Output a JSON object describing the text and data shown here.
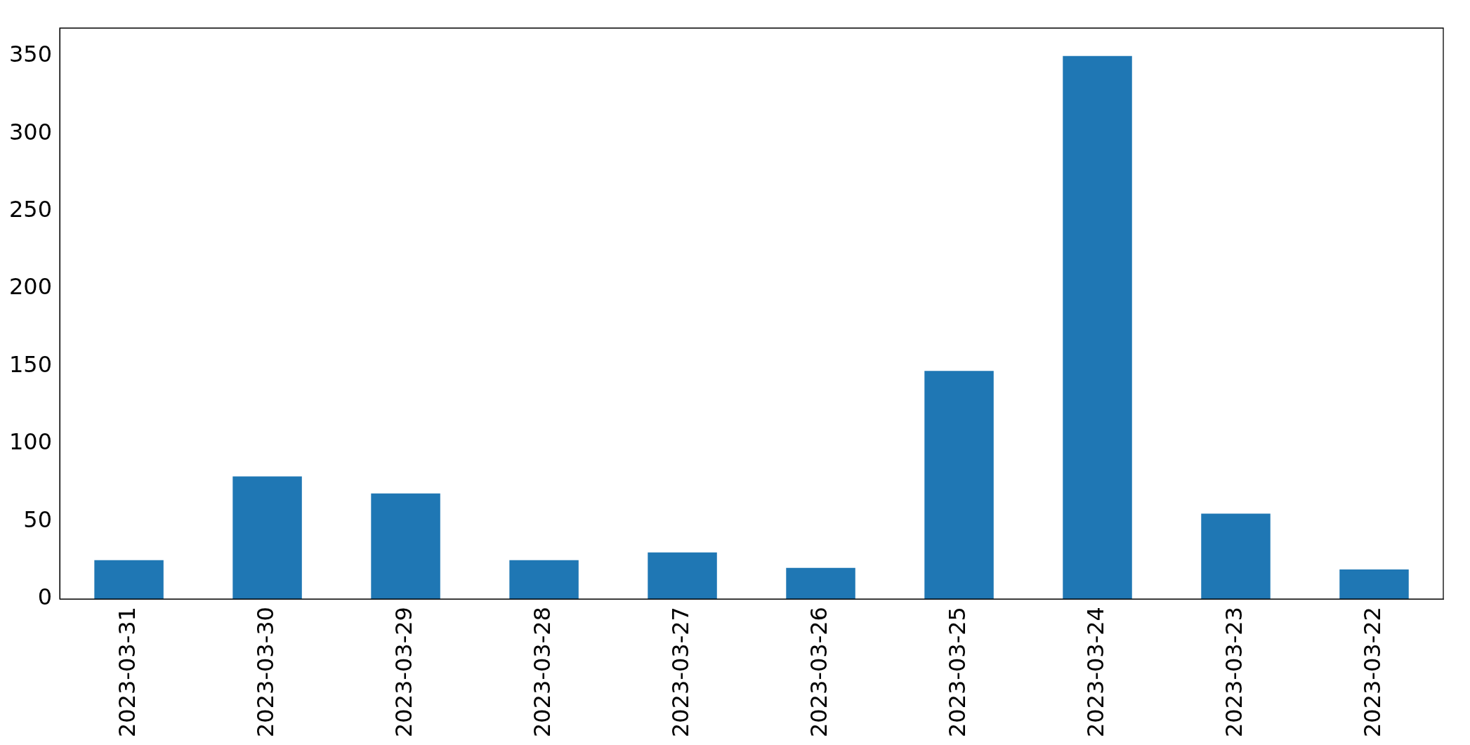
{
  "chart_data": {
    "type": "bar",
    "categories": [
      "2023-03-31",
      "2023-03-30",
      "2023-03-29",
      "2023-03-28",
      "2023-03-27",
      "2023-03-26",
      "2023-03-25",
      "2023-03-24",
      "2023-03-23",
      "2023-03-22"
    ],
    "values": [
      25,
      79,
      68,
      25,
      30,
      20,
      147,
      350,
      55,
      19
    ],
    "color": "#1f77b4",
    "ylim": [
      0,
      368
    ],
    "yticks": [
      0,
      50,
      100,
      150,
      200,
      250,
      300,
      350
    ],
    "grid": false,
    "legend": false
  }
}
